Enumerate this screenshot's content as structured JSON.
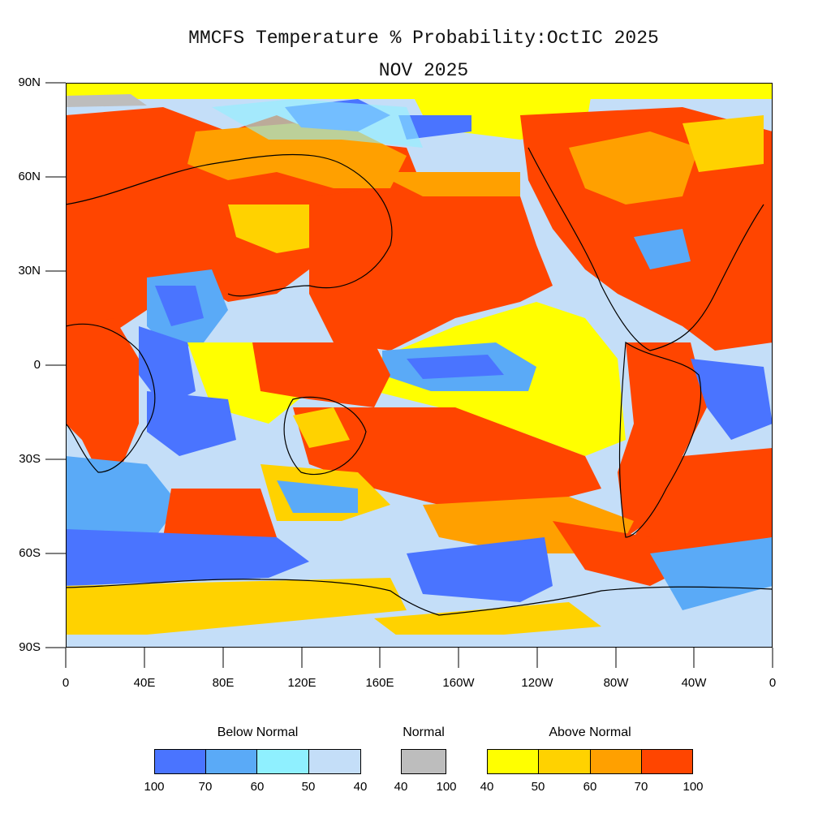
{
  "title": "MMCFS Temperature % Probability:OctIC 2025",
  "subtitle": "NOV 2025",
  "lat_ticks": [
    "90N",
    "60N",
    "30N",
    "0",
    "30S",
    "60S",
    "90S"
  ],
  "lon_ticks": [
    "0",
    "40E",
    "80E",
    "120E",
    "160E",
    "160W",
    "120W",
    "80W",
    "40W",
    "0"
  ],
  "legend": {
    "below": {
      "title": "Below Normal",
      "colors": [
        "#4a74ff",
        "#5aaaf7",
        "#8ff0ff",
        "#c4def8"
      ],
      "labels": [
        "100",
        "70",
        "60",
        "50",
        "40"
      ]
    },
    "normal": {
      "title": "Normal",
      "color": "#bdbdbd",
      "labels": [
        "40",
        "100"
      ]
    },
    "above": {
      "title": "Above Normal",
      "colors": [
        "#ffff00",
        "#ffd200",
        "#ffa000",
        "#ff4500"
      ],
      "labels": [
        "40",
        "50",
        "60",
        "70",
        "100"
      ]
    }
  },
  "colors": {
    "background": "#ffffff",
    "coastline": "#000000"
  }
}
